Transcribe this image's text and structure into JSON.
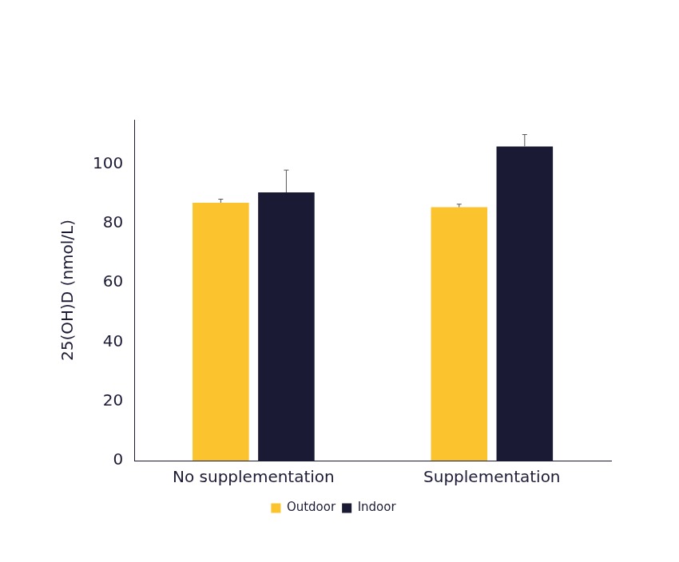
{
  "chart_data": {
    "type": "bar",
    "y_label": "25(OH)D (nmol/L)",
    "categories": [
      "No supplementation",
      "Supplementation"
    ],
    "series": [
      {
        "name": "Outdoor",
        "color": "#fbc42e",
        "values": [
          87,
          85.5
        ],
        "errors": [
          1.2,
          1
        ]
      },
      {
        "name": "Indoor",
        "color": "#1b1a35",
        "values": [
          90.5,
          106
        ],
        "errors": [
          7.5,
          4
        ]
      }
    ],
    "ylim": [
      0,
      115
    ],
    "yticks": [
      0,
      20,
      40,
      60,
      80,
      100
    ],
    "grid": false,
    "legend": "bottom"
  }
}
